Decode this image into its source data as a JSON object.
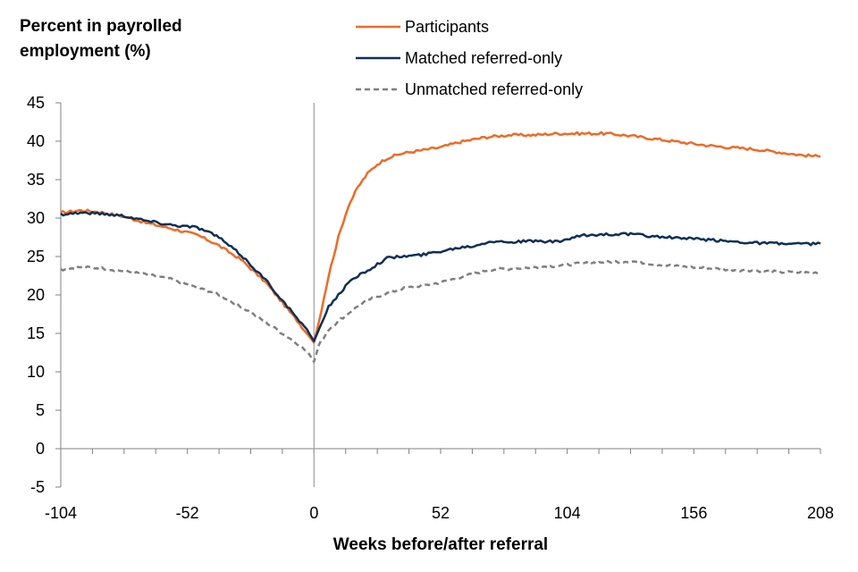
{
  "chart_data": {
    "type": "line",
    "ylabel_lines": [
      "Percent in payrolled",
      "employment (%)"
    ],
    "xlabel": "Weeks before/after referral",
    "xlim": [
      -104,
      208
    ],
    "ylim": [
      -5,
      45
    ],
    "x_ticks": [
      -104,
      -52,
      0,
      52,
      104,
      156,
      208
    ],
    "y_ticks": [
      -5,
      0,
      5,
      10,
      15,
      20,
      25,
      30,
      35,
      40,
      45
    ],
    "vertical_line_at_x": 0,
    "legend_position": "top",
    "series": [
      {
        "name": "Participants",
        "color": "#ed6b26",
        "style": "solid",
        "points": [
          [
            -104,
            30.7
          ],
          [
            -96,
            31.0
          ],
          [
            -88,
            30.8
          ],
          [
            -78,
            30.2
          ],
          [
            -68,
            29.3
          ],
          [
            -58,
            28.6
          ],
          [
            -48,
            27.8
          ],
          [
            -40,
            26.6
          ],
          [
            -30,
            24.6
          ],
          [
            -20,
            21.7
          ],
          [
            -12,
            18.6
          ],
          [
            -6,
            16.3
          ],
          [
            -2,
            14.6
          ],
          [
            0,
            13.8
          ],
          [
            2,
            16.5
          ],
          [
            6,
            22.5
          ],
          [
            10,
            27.5
          ],
          [
            14,
            31.5
          ],
          [
            18,
            34.0
          ],
          [
            22,
            35.8
          ],
          [
            26,
            37.0
          ],
          [
            30,
            37.8
          ],
          [
            36,
            38.4
          ],
          [
            44,
            38.8
          ],
          [
            52,
            39.2
          ],
          [
            60,
            39.9
          ],
          [
            70,
            40.5
          ],
          [
            80,
            40.8
          ],
          [
            90,
            40.8
          ],
          [
            100,
            41.0
          ],
          [
            110,
            41.0
          ],
          [
            120,
            41.0
          ],
          [
            130,
            40.7
          ],
          [
            140,
            40.3
          ],
          [
            150,
            39.9
          ],
          [
            160,
            39.5
          ],
          [
            170,
            39.2
          ],
          [
            180,
            39.0
          ],
          [
            190,
            38.6
          ],
          [
            200,
            38.2
          ],
          [
            208,
            38.0
          ]
        ]
      },
      {
        "name": "Matched referred-only",
        "color": "#0f2f56",
        "style": "solid",
        "points": [
          [
            -104,
            30.5
          ],
          [
            -96,
            30.7
          ],
          [
            -88,
            30.6
          ],
          [
            -78,
            30.3
          ],
          [
            -68,
            29.6
          ],
          [
            -58,
            29.1
          ],
          [
            -48,
            28.8
          ],
          [
            -40,
            27.7
          ],
          [
            -30,
            25.2
          ],
          [
            -20,
            22.0
          ],
          [
            -12,
            18.9
          ],
          [
            -6,
            16.6
          ],
          [
            -2,
            15.0
          ],
          [
            0,
            14.0
          ],
          [
            2,
            15.5
          ],
          [
            6,
            18.5
          ],
          [
            10,
            20.0
          ],
          [
            14,
            21.5
          ],
          [
            18,
            22.5
          ],
          [
            22,
            23.2
          ],
          [
            26,
            24.0
          ],
          [
            30,
            24.8
          ],
          [
            36,
            25.0
          ],
          [
            44,
            25.2
          ],
          [
            52,
            25.7
          ],
          [
            60,
            26.2
          ],
          [
            66,
            26.4
          ],
          [
            72,
            27.0
          ],
          [
            80,
            26.9
          ],
          [
            90,
            27.0
          ],
          [
            100,
            26.9
          ],
          [
            110,
            27.7
          ],
          [
            120,
            27.9
          ],
          [
            130,
            27.9
          ],
          [
            140,
            27.6
          ],
          [
            150,
            27.4
          ],
          [
            160,
            27.2
          ],
          [
            170,
            27.0
          ],
          [
            180,
            26.8
          ],
          [
            190,
            26.7
          ],
          [
            200,
            26.6
          ],
          [
            208,
            26.7
          ]
        ]
      },
      {
        "name": "Unmatched referred-only",
        "color": "#7f7f7f",
        "style": "dashed",
        "points": [
          [
            -104,
            23.3
          ],
          [
            -96,
            23.6
          ],
          [
            -88,
            23.5
          ],
          [
            -78,
            23.1
          ],
          [
            -68,
            22.6
          ],
          [
            -58,
            22.0
          ],
          [
            -48,
            20.9
          ],
          [
            -40,
            20.2
          ],
          [
            -30,
            18.5
          ],
          [
            -20,
            16.5
          ],
          [
            -12,
            14.8
          ],
          [
            -6,
            13.5
          ],
          [
            -2,
            12.3
          ],
          [
            0,
            11.3
          ],
          [
            2,
            13.5
          ],
          [
            6,
            15.5
          ],
          [
            10,
            16.6
          ],
          [
            14,
            17.6
          ],
          [
            18,
            18.5
          ],
          [
            22,
            19.3
          ],
          [
            26,
            19.8
          ],
          [
            30,
            20.2
          ],
          [
            36,
            20.8
          ],
          [
            44,
            21.2
          ],
          [
            52,
            21.6
          ],
          [
            60,
            22.3
          ],
          [
            66,
            22.8
          ],
          [
            72,
            23.3
          ],
          [
            80,
            23.4
          ],
          [
            90,
            23.6
          ],
          [
            100,
            23.8
          ],
          [
            110,
            24.1
          ],
          [
            120,
            24.3
          ],
          [
            130,
            24.4
          ],
          [
            140,
            24.0
          ],
          [
            150,
            23.7
          ],
          [
            160,
            23.5
          ],
          [
            170,
            23.3
          ],
          [
            180,
            23.2
          ],
          [
            190,
            23.0
          ],
          [
            200,
            22.9
          ],
          [
            208,
            22.9
          ]
        ]
      }
    ]
  }
}
